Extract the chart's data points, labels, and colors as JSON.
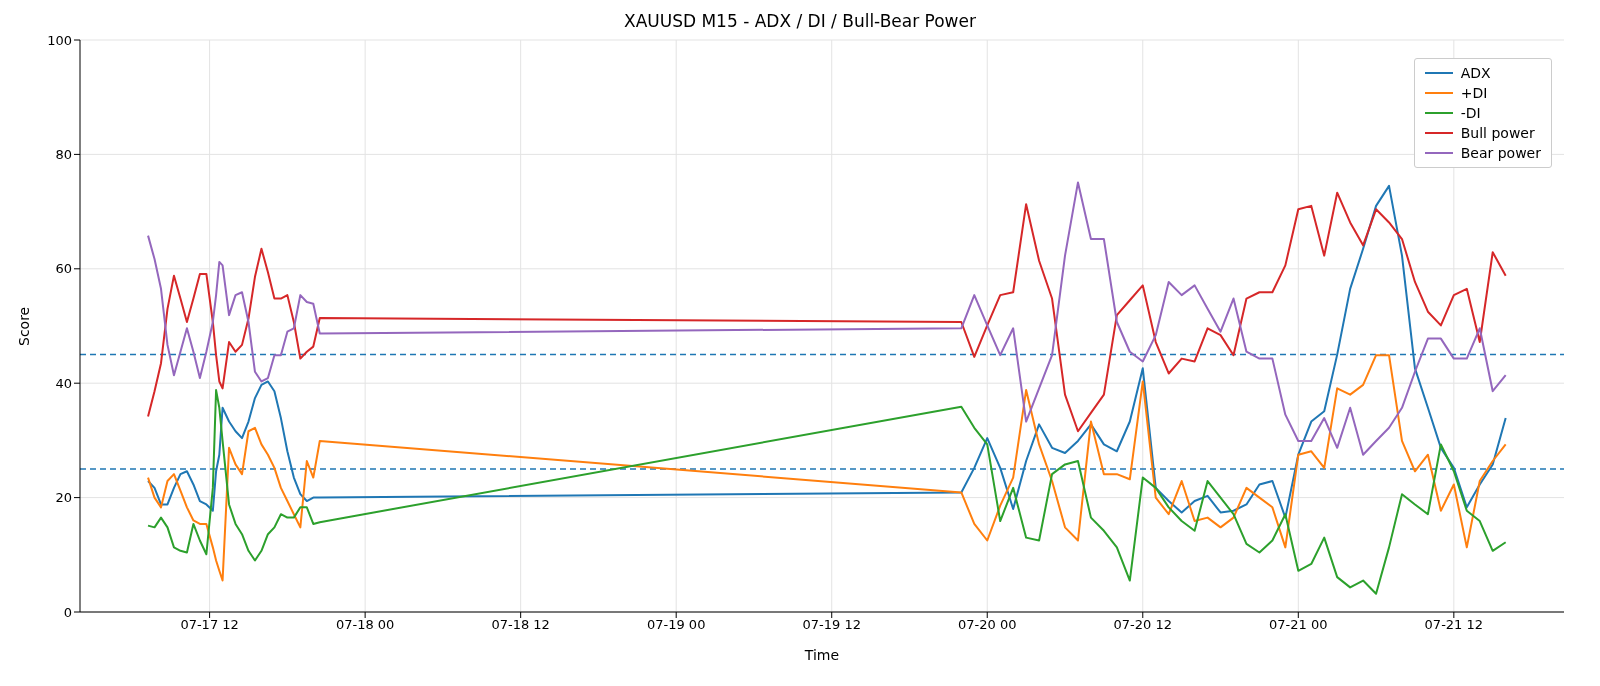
{
  "chart_data": {
    "type": "line",
    "title": "XAUUSD M15 - ADX / DI / Bull-Bear Power",
    "xlabel": "Time",
    "ylabel": "Score",
    "x": [
      "--07-17T07:15",
      "--07-17T07:45",
      "--07-17T08:15",
      "--07-17T08:45",
      "--07-17T09:15",
      "--07-17T09:45",
      "--07-17T10:15",
      "--07-17T10:45",
      "--07-17T11:15",
      "--07-17T11:45",
      "--07-17T12:15",
      "--07-17T12:30",
      "--07-17T12:45",
      "--07-17T13:00",
      "--07-17T13:30",
      "--07-17T14:00",
      "--07-17T14:30",
      "--07-17T15:00",
      "--07-17T15:30",
      "--07-17T16:00",
      "--07-17T16:30",
      "--07-17T17:00",
      "--07-17T17:30",
      "--07-17T18:00",
      "--07-17T18:30",
      "--07-17T19:00",
      "--07-17T19:30",
      "--07-17T20:00",
      "--07-17T20:30",
      "--07-19T22:00",
      "--07-19T23:00",
      "--07-20T00:00",
      "--07-20T01:00",
      "--07-20T02:00",
      "--07-20T03:00",
      "--07-20T04:00",
      "--07-20T05:00",
      "--07-20T06:00",
      "--07-20T07:00",
      "--07-20T08:00",
      "--07-20T09:00",
      "--07-20T10:00",
      "--07-20T11:00",
      "--07-20T12:00",
      "--07-20T13:00",
      "--07-20T14:00",
      "--07-20T15:00",
      "--07-20T16:00",
      "--07-20T17:00",
      "--07-20T18:00",
      "--07-20T19:00",
      "--07-20T20:00",
      "--07-20T21:00",
      "--07-20T22:00",
      "--07-20T23:00",
      "--07-21T00:00",
      "--07-21T01:00",
      "--07-21T02:00",
      "--07-21T03:00",
      "--07-21T04:00",
      "--07-21T05:00",
      "--07-21T06:00",
      "--07-21T07:00",
      "--07-21T08:00",
      "--07-21T09:00",
      "--07-21T10:00",
      "--07-21T11:00",
      "--07-21T12:00",
      "--07-21T13:00",
      "--07-21T14:00",
      "--07-21T15:00",
      "--07-21T16:00"
    ],
    "series": [
      {
        "name": "ADX",
        "color": "#1f77b4",
        "values": [
          22.9,
          21.7,
          18.8,
          18.8,
          21.7,
          24.1,
          24.6,
          22.3,
          19.4,
          18.8,
          17.7,
          24.6,
          27.5,
          35.7,
          33.3,
          31.6,
          30.4,
          33.3,
          37.4,
          39.7,
          40.3,
          38.6,
          33.9,
          28.1,
          23.5,
          20.6,
          19.4,
          20,
          20,
          20.9,
          25.2,
          30.4,
          25.2,
          18,
          26.4,
          32.8,
          28.7,
          27.8,
          29.9,
          32.8,
          29.3,
          28.1,
          33.3,
          42.6,
          21.7,
          19.4,
          17.4,
          19.4,
          20.3,
          17.4,
          17.7,
          18.8,
          22.3,
          22.9,
          16.5,
          27.5,
          33.3,
          35.1,
          45,
          56.5,
          63.5,
          71,
          74.5,
          62.3,
          42.6,
          35.7,
          28.7,
          25.2,
          18.3,
          22.3,
          25.8,
          33.9
        ]
      },
      {
        "name": "+DI",
        "color": "#ff7f0e",
        "values": [
          23.5,
          20,
          18.3,
          22.9,
          24.1,
          21.2,
          18.3,
          16,
          15.4,
          15.4,
          11.3,
          9,
          7.2,
          5.5,
          28.7,
          25.8,
          24.1,
          31.6,
          32.2,
          29.3,
          27.5,
          25.2,
          21.7,
          19.4,
          17.1,
          14.8,
          26.4,
          23.5,
          29.9,
          20.9,
          15.4,
          12.5,
          18.6,
          23.5,
          38.8,
          29.3,
          22.9,
          14.8,
          12.5,
          33.3,
          24.1,
          24.1,
          23.2,
          40.3,
          20,
          17.1,
          22.9,
          15.9,
          16.5,
          14.8,
          16.5,
          21.7,
          20,
          18.3,
          11.3,
          27.5,
          28.1,
          25.2,
          39.1,
          38,
          39.7,
          44.9,
          44.9,
          29.9,
          24.6,
          27.5,
          17.7,
          22.3,
          11.3,
          22.9,
          26.4,
          29.3
        ]
      },
      {
        "name": "-DI",
        "color": "#2ca02c",
        "values": [
          15.1,
          14.8,
          16.5,
          14.8,
          11.3,
          10.7,
          10.4,
          15.4,
          12.5,
          10.1,
          21.7,
          38.8,
          35.7,
          29.9,
          18.8,
          15.4,
          13.6,
          10.7,
          9,
          10.7,
          13.6,
          14.8,
          17.1,
          16.5,
          16.5,
          18.3,
          18.3,
          15.4,
          15.7,
          35.9,
          32.2,
          29.3,
          15.9,
          21.7,
          13,
          12.5,
          24.1,
          25.8,
          26.4,
          16.5,
          14.2,
          11.3,
          5.5,
          23.5,
          21.7,
          18.3,
          15.9,
          14.2,
          22.9,
          20,
          17.1,
          11.9,
          10.4,
          12.5,
          17.1,
          7.2,
          8.4,
          13,
          6.1,
          4.3,
          5.5,
          3.2,
          11.3,
          20.6,
          18.8,
          17.1,
          29.3,
          24.6,
          17.7,
          15.9,
          10.7,
          12.2
        ]
      },
      {
        "name": "Bull power",
        "color": "#d62728",
        "values": [
          34.2,
          38.6,
          43.5,
          53,
          58.8,
          54.8,
          50.7,
          54.8,
          59.1,
          59.1,
          50.7,
          44.9,
          40.3,
          39.1,
          47.2,
          45.5,
          46.7,
          51.3,
          58.6,
          63.5,
          59.4,
          54.8,
          54.8,
          55.4,
          50.7,
          44.3,
          45.5,
          46.4,
          51.4,
          50.7,
          44.6,
          50.1,
          55.4,
          55.9,
          71.3,
          61.4,
          54.8,
          38,
          31.6,
          34.8,
          38,
          51.9,
          54.5,
          57.1,
          47.2,
          41.7,
          44.3,
          43.8,
          49.6,
          48.4,
          44.9,
          54.8,
          55.9,
          55.9,
          60.6,
          70.4,
          71,
          62.3,
          73.3,
          68.1,
          64.1,
          70.4,
          68.1,
          65.2,
          57.7,
          52.5,
          50.1,
          55.4,
          56.5,
          47.2,
          62.9,
          58.8
        ]
      },
      {
        "name": "Bear power",
        "color": "#9467bd",
        "values": [
          65.8,
          61.7,
          56.5,
          46.7,
          41.4,
          45.5,
          49.6,
          45.5,
          40.9,
          45.5,
          50.7,
          55.4,
          61.2,
          60.6,
          51.9,
          55.4,
          55.9,
          50.7,
          42,
          40.3,
          40.9,
          44.9,
          44.9,
          49,
          49.6,
          55.4,
          54.2,
          53.9,
          48.7,
          49.6,
          55.4,
          50.1,
          44.9,
          49.6,
          33.3,
          39.1,
          44.9,
          62.3,
          75.1,
          65.2,
          65.2,
          50.7,
          45.5,
          43.8,
          48.4,
          57.7,
          55.4,
          57.1,
          53,
          49,
          54.8,
          45.5,
          44.3,
          44.3,
          34.5,
          29.9,
          29.9,
          33.9,
          28.7,
          35.7,
          27.5,
          29.9,
          32.2,
          35.7,
          42,
          47.8,
          47.8,
          44.3,
          44.3,
          49.6,
          38.6,
          41.4
        ]
      }
    ],
    "xlim": [
      "--07-17T02:00",
      "--07-21T20:30"
    ],
    "xticks": [
      {
        "value": "--07-17T12:00",
        "label": "07-17 12"
      },
      {
        "value": "--07-18T00:00",
        "label": "07-18 00"
      },
      {
        "value": "--07-18T12:00",
        "label": "07-18 12"
      },
      {
        "value": "--07-19T00:00",
        "label": "07-19 00"
      },
      {
        "value": "--07-19T12:00",
        "label": "07-19 12"
      },
      {
        "value": "--07-20T00:00",
        "label": "07-20 00"
      },
      {
        "value": "--07-20T12:00",
        "label": "07-20 12"
      },
      {
        "value": "--07-21T00:00",
        "label": "07-21 00"
      },
      {
        "value": "--07-21T12:00",
        "label": "07-21 12"
      }
    ],
    "ylim": [
      0,
      100
    ],
    "yticks": [
      0,
      20,
      40,
      60,
      80,
      100
    ],
    "ref_lines": [
      {
        "axis": "y",
        "value": 45,
        "color": "#1f77b4",
        "line_style": "dashed"
      },
      {
        "axis": "y",
        "value": 25,
        "color": "#1f77b4",
        "line_style": "dashed"
      }
    ],
    "grid": true,
    "legend": "top right"
  }
}
